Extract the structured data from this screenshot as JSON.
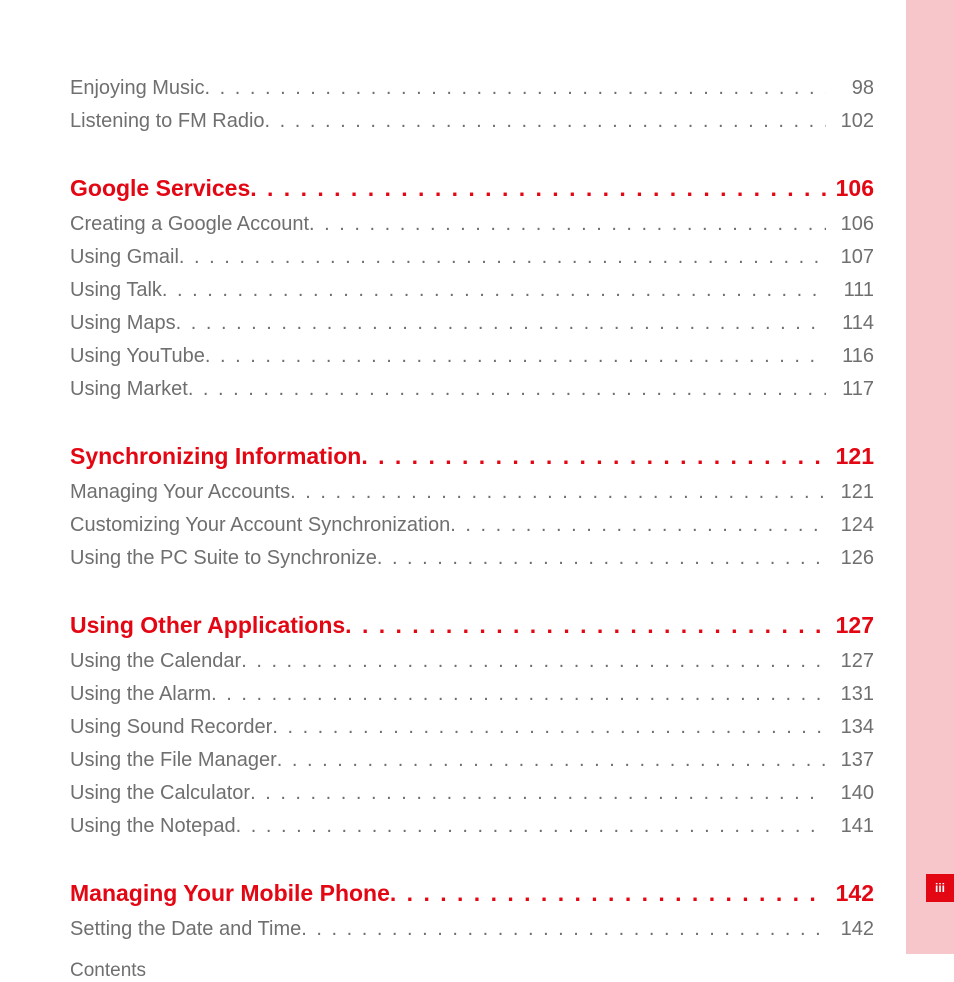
{
  "colors": {
    "accent": "#e30613",
    "sidebar": "#f6c6ca",
    "sub_text": "#6f6f6f",
    "background": "#ffffff"
  },
  "footer_label": "Contents",
  "page_marker": "iii",
  "toc": [
    {
      "heading": null,
      "items": [
        {
          "label": "Enjoying Music",
          "page": "98"
        },
        {
          "label": "Listening to FM Radio",
          "page": "102"
        }
      ]
    },
    {
      "heading": {
        "label": "Google Services",
        "page": "106"
      },
      "items": [
        {
          "label": "Creating a Google Account",
          "page": "106"
        },
        {
          "label": "Using Gmail",
          "page": "107"
        },
        {
          "label": "Using Talk",
          "page": "111"
        },
        {
          "label": "Using Maps",
          "page": "114"
        },
        {
          "label": "Using YouTube",
          "page": "116"
        },
        {
          "label": "Using Market",
          "page": "117"
        }
      ]
    },
    {
      "heading": {
        "label": "Synchronizing Information",
        "page": "121"
      },
      "items": [
        {
          "label": "Managing Your Accounts",
          "page": "121"
        },
        {
          "label": "Customizing Your Account Synchronization",
          "page": "124"
        },
        {
          "label": "Using the PC Suite to Synchronize",
          "page": "126"
        }
      ]
    },
    {
      "heading": {
        "label": "Using Other Applications",
        "page": "127"
      },
      "items": [
        {
          "label": "Using the Calendar",
          "page": "127"
        },
        {
          "label": "Using the Alarm",
          "page": "131"
        },
        {
          "label": "Using Sound Recorder",
          "page": "134"
        },
        {
          "label": "Using the File Manager",
          "page": "137"
        },
        {
          "label": "Using the Calculator",
          "page": "140"
        },
        {
          "label": "Using the Notepad",
          "page": "141"
        }
      ]
    },
    {
      "heading": {
        "label": "Managing Your Mobile Phone",
        "page": "142"
      },
      "items": [
        {
          "label": "Setting the Date and Time",
          "page": "142"
        }
      ]
    }
  ]
}
